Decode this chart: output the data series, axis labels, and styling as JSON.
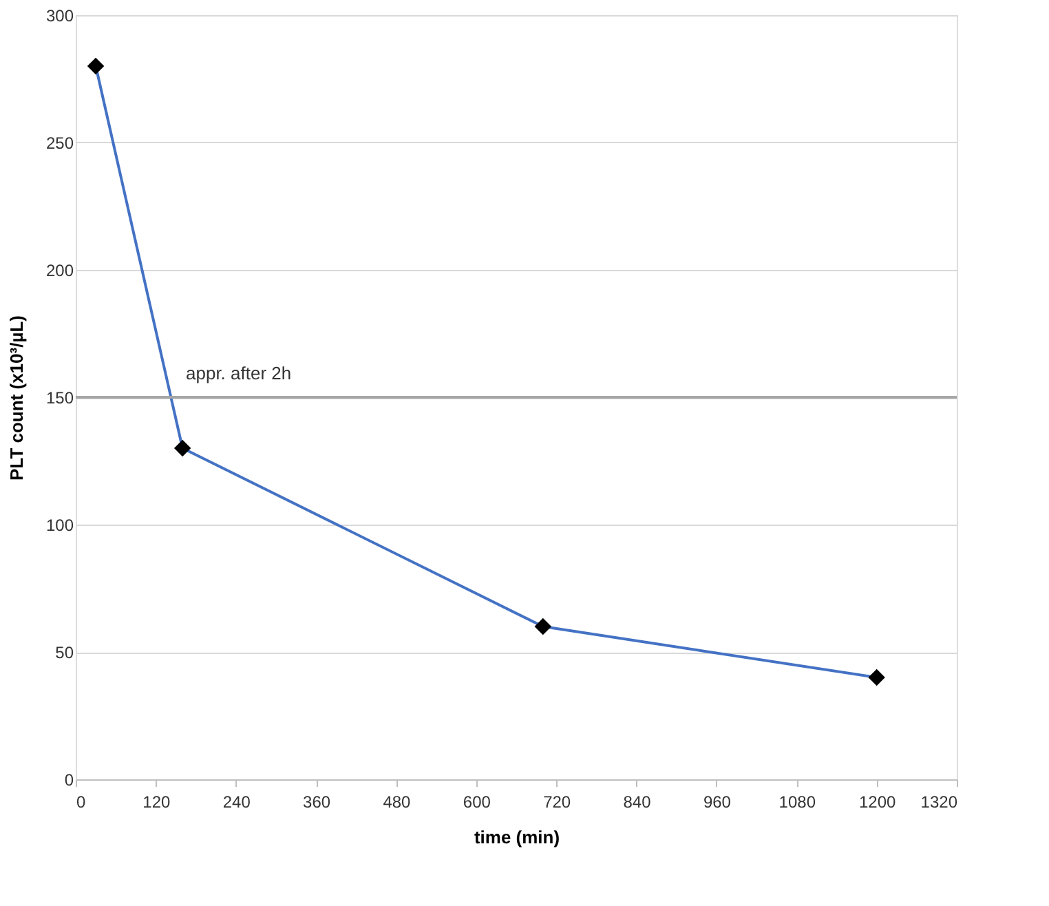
{
  "chart_data": {
    "type": "line",
    "xlabel": "time (min)",
    "ylabel": "PLT count (x10³/µL)",
    "x": [
      30,
      160,
      700,
      1200
    ],
    "series": [
      {
        "color": "#4472c4",
        "values": [
          280,
          130,
          60,
          40
        ]
      }
    ],
    "marker": "diamond",
    "line_style": "solid",
    "xlim": [
      0,
      1320
    ],
    "xticks": [
      0,
      120,
      240,
      360,
      480,
      600,
      720,
      840,
      960,
      1080,
      1200,
      1320
    ],
    "ylim": [
      0,
      300
    ],
    "yticks": [
      0,
      50,
      100,
      150,
      200,
      250,
      300
    ],
    "grid": "y",
    "ref_lines": [
      {
        "axis": "y",
        "value": 150,
        "label": "appr. after 2h",
        "color": "#a6a6a6"
      }
    ]
  }
}
